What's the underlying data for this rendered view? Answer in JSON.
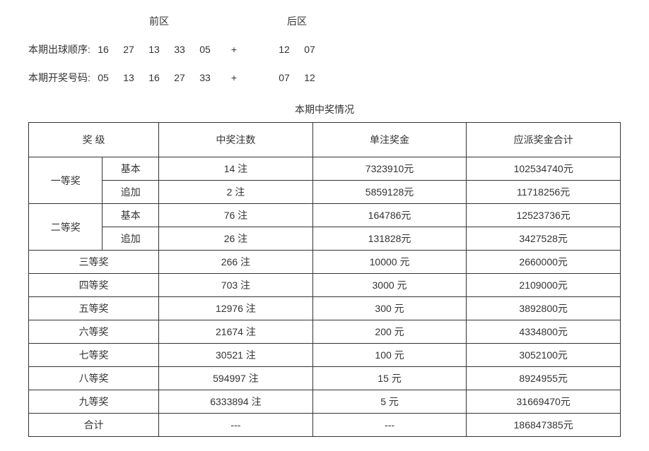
{
  "numbers": {
    "front_label": "前区",
    "back_label": "后区",
    "rows": [
      {
        "label": "本期出球顺序:",
        "front": [
          "16",
          "27",
          "13",
          "33",
          "05"
        ],
        "plus": "+",
        "back": [
          "12",
          "07"
        ]
      },
      {
        "label": "本期开奖号码:",
        "front": [
          "05",
          "13",
          "16",
          "27",
          "33"
        ],
        "plus": "+",
        "back": [
          "07",
          "12"
        ]
      }
    ]
  },
  "table": {
    "title": "本期中奖情况",
    "headers": {
      "level": "奖 级",
      "count": "中奖注数",
      "unit": "单注奖金",
      "total": "应派奖金合计"
    },
    "sub_labels": {
      "basic": "基本",
      "add": "追加"
    },
    "prize1": {
      "label": "一等奖",
      "basic": {
        "count": "14 注",
        "unit": "7323910元",
        "total": "102534740元"
      },
      "add": {
        "count": "2 注",
        "unit": "5859128元",
        "total": "11718256元"
      }
    },
    "prize2": {
      "label": "二等奖",
      "basic": {
        "count": "76 注",
        "unit": "164786元",
        "total": "12523736元"
      },
      "add": {
        "count": "26 注",
        "unit": "131828元",
        "total": "3427528元"
      }
    },
    "simple_rows": [
      {
        "label": "三等奖",
        "count": "266 注",
        "unit": "10000 元",
        "total": "2660000元"
      },
      {
        "label": "四等奖",
        "count": "703 注",
        "unit": "3000 元",
        "total": "2109000元"
      },
      {
        "label": "五等奖",
        "count": "12976 注",
        "unit": "300 元",
        "total": "3892800元"
      },
      {
        "label": "六等奖",
        "count": "21674 注",
        "unit": "200 元",
        "total": "4334800元"
      },
      {
        "label": "七等奖",
        "count": "30521 注",
        "unit": "100 元",
        "total": "3052100元"
      },
      {
        "label": "八等奖",
        "count": "594997 注",
        "unit": "15 元",
        "total": "8924955元"
      },
      {
        "label": "九等奖",
        "count": "6333894 注",
        "unit": "5 元",
        "total": "31669470元"
      }
    ],
    "total_row": {
      "label": "合计",
      "count": "---",
      "unit": "---",
      "total": "186847385元"
    }
  }
}
